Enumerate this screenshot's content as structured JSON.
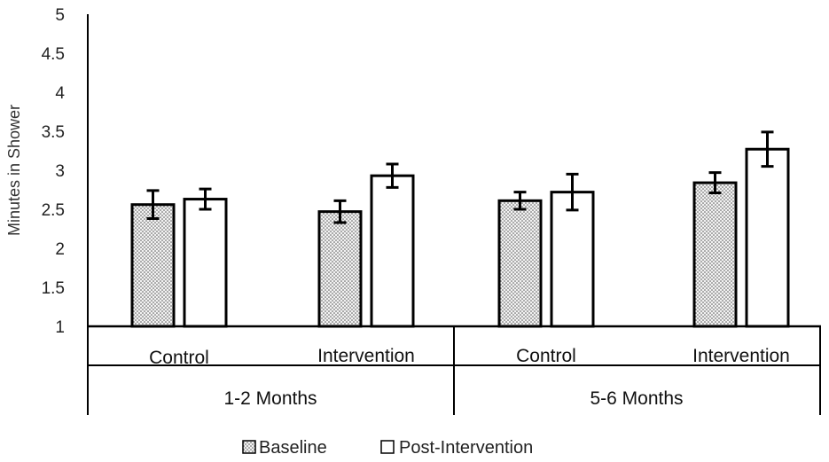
{
  "chart_data": {
    "type": "bar",
    "ylabel": "Minutes in Shower",
    "xlabel": "",
    "ylim": [
      1,
      5
    ],
    "yticks": [
      "1",
      "1.5",
      "2",
      "2.5",
      "3",
      "3.5",
      "4",
      "4.5",
      "5"
    ],
    "groups": [
      {
        "label": "1-2 Months",
        "categories": [
          "Control",
          "Intervention"
        ]
      },
      {
        "label": "5-6 Months",
        "categories": [
          "Control",
          "Intervention"
        ]
      }
    ],
    "series": [
      {
        "name": "Baseline",
        "pattern": "dotted",
        "values": [
          2.56,
          2.47,
          2.61,
          2.84
        ],
        "errors": [
          0.18,
          0.14,
          0.11,
          0.13
        ]
      },
      {
        "name": "Post-Intervention",
        "pattern": "white",
        "values": [
          2.63,
          2.93,
          2.72,
          3.27
        ],
        "errors": [
          0.13,
          0.15,
          0.23,
          0.22
        ]
      }
    ],
    "legend_position": "bottom"
  },
  "colors": {
    "axis": "#000000",
    "bar_outline": "#000000",
    "dot": "#555555",
    "fill": "#ffffff"
  }
}
